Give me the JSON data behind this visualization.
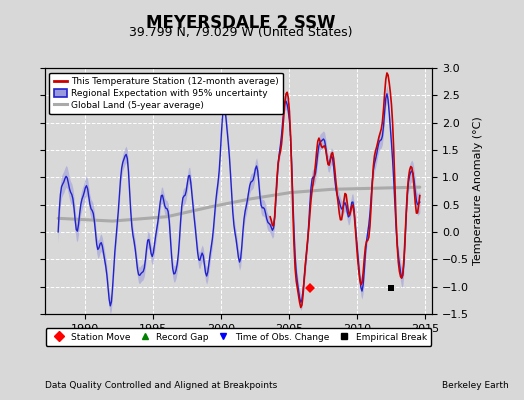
{
  "title": "MEYERSDALE 2 SSW",
  "subtitle": "39.799 N, 79.029 W (United States)",
  "ylabel": "Temperature Anomaly (°C)",
  "xlabel_left": "Data Quality Controlled and Aligned at Breakpoints",
  "xlabel_right": "Berkeley Earth",
  "ylim": [
    -1.5,
    3.0
  ],
  "xlim": [
    1987.0,
    2015.5
  ],
  "yticks": [
    -1.5,
    -1.0,
    -0.5,
    0.0,
    0.5,
    1.0,
    1.5,
    2.0,
    2.5,
    3.0
  ],
  "xticks": [
    1990,
    1995,
    2000,
    2005,
    2010,
    2015
  ],
  "bg_color": "#d8d8d8",
  "plot_bg_color": "#d8d8d8",
  "station_move_x": 2006.5,
  "station_move_y": -1.02,
  "empirical_break_x": 2012.5,
  "empirical_break_y": -1.02,
  "grid_color": "#ffffff",
  "line_color_station": "#cc0000",
  "line_color_regional": "#2222cc",
  "fill_color_regional": "#9999dd",
  "line_color_global": "#aaaaaa",
  "title_fontsize": 12,
  "subtitle_fontsize": 9,
  "tick_fontsize": 8,
  "ylabel_fontsize": 8
}
